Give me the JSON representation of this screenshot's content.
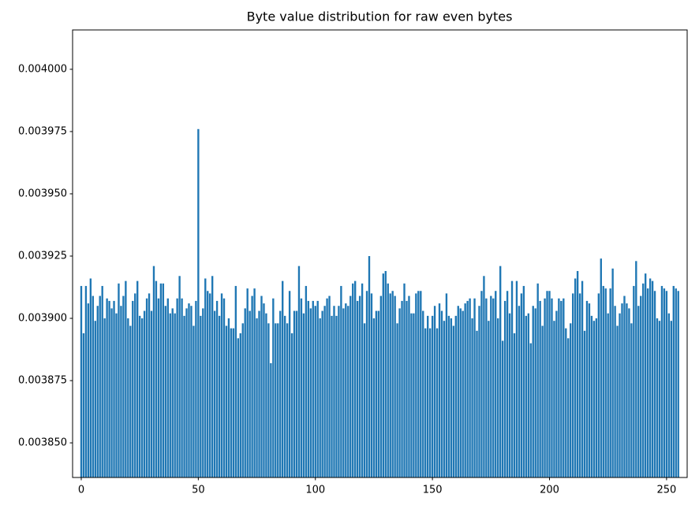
{
  "chart_data": {
    "type": "bar",
    "title": "Byte value distribution for raw even bytes",
    "x": [
      0,
      1,
      2,
      3,
      4,
      5,
      6,
      7,
      8,
      9,
      10,
      11,
      12,
      13,
      14,
      15,
      16,
      17,
      18,
      19,
      20,
      21,
      22,
      23,
      24,
      25,
      26,
      27,
      28,
      29,
      30,
      31,
      32,
      33,
      34,
      35,
      36,
      37,
      38,
      39,
      40,
      41,
      42,
      43,
      44,
      45,
      46,
      47,
      48,
      49,
      50,
      51,
      52,
      53,
      54,
      55,
      56,
      57,
      58,
      59,
      60,
      61,
      62,
      63,
      64,
      65,
      66,
      67,
      68,
      69,
      70,
      71,
      72,
      73,
      74,
      75,
      76,
      77,
      78,
      79,
      80,
      81,
      82,
      83,
      84,
      85,
      86,
      87,
      88,
      89,
      90,
      91,
      92,
      93,
      94,
      95,
      96,
      97,
      98,
      99,
      100,
      101,
      102,
      103,
      104,
      105,
      106,
      107,
      108,
      109,
      110,
      111,
      112,
      113,
      114,
      115,
      116,
      117,
      118,
      119,
      120,
      121,
      122,
      123,
      124,
      125,
      126,
      127,
      128,
      129,
      130,
      131,
      132,
      133,
      134,
      135,
      136,
      137,
      138,
      139,
      140,
      141,
      142,
      143,
      144,
      145,
      146,
      147,
      148,
      149,
      150,
      151,
      152,
      153,
      154,
      155,
      156,
      157,
      158,
      159,
      160,
      161,
      162,
      163,
      164,
      165,
      166,
      167,
      168,
      169,
      170,
      171,
      172,
      173,
      174,
      175,
      176,
      177,
      178,
      179,
      180,
      181,
      182,
      183,
      184,
      185,
      186,
      187,
      188,
      189,
      190,
      191,
      192,
      193,
      194,
      195,
      196,
      197,
      198,
      199,
      200,
      201,
      202,
      203,
      204,
      205,
      206,
      207,
      208,
      209,
      210,
      211,
      212,
      213,
      214,
      215,
      216,
      217,
      218,
      219,
      220,
      221,
      222,
      223,
      224,
      225,
      226,
      227,
      228,
      229,
      230,
      231,
      232,
      233,
      234,
      235,
      236,
      237,
      238,
      239,
      240,
      241,
      242,
      243,
      244,
      245,
      246,
      247,
      248,
      249,
      250,
      251,
      252,
      253,
      254,
      255
    ],
    "values": [
      0.003913,
      0.003894,
      0.003913,
      0.003906,
      0.003916,
      0.003909,
      0.003899,
      0.003905,
      0.003909,
      0.003913,
      0.0039,
      0.003908,
      0.003907,
      0.003904,
      0.003907,
      0.003902,
      0.003914,
      0.003905,
      0.003909,
      0.003915,
      0.0039,
      0.003897,
      0.003907,
      0.00391,
      0.003915,
      0.003901,
      0.0039,
      0.003903,
      0.003908,
      0.00391,
      0.003903,
      0.003921,
      0.003915,
      0.003908,
      0.003914,
      0.003914,
      0.003905,
      0.003908,
      0.003902,
      0.003904,
      0.003902,
      0.003908,
      0.003917,
      0.003908,
      0.003901,
      0.003904,
      0.003906,
      0.003905,
      0.003897,
      0.003907,
      0.003976,
      0.003901,
      0.003904,
      0.003916,
      0.003911,
      0.00391,
      0.003917,
      0.003903,
      0.003907,
      0.003901,
      0.00391,
      0.003908,
      0.003897,
      0.0039,
      0.003896,
      0.003896,
      0.003913,
      0.003892,
      0.003894,
      0.003898,
      0.003904,
      0.003912,
      0.003903,
      0.003909,
      0.003912,
      0.0039,
      0.003903,
      0.003909,
      0.003906,
      0.003902,
      0.003898,
      0.003882,
      0.003908,
      0.003898,
      0.003898,
      0.003903,
      0.003915,
      0.003901,
      0.003898,
      0.003911,
      0.003894,
      0.003903,
      0.003903,
      0.003921,
      0.003908,
      0.003902,
      0.003913,
      0.003907,
      0.003904,
      0.003907,
      0.003905,
      0.003907,
      0.0039,
      0.003903,
      0.003905,
      0.003908,
      0.003909,
      0.003901,
      0.003905,
      0.003901,
      0.003905,
      0.003913,
      0.003904,
      0.003906,
      0.003905,
      0.003909,
      0.003914,
      0.003915,
      0.003907,
      0.003909,
      0.003914,
      0.003898,
      0.003911,
      0.003925,
      0.00391,
      0.0039,
      0.003903,
      0.003903,
      0.003909,
      0.003918,
      0.003919,
      0.003914,
      0.00391,
      0.003911,
      0.003909,
      0.003898,
      0.003904,
      0.003907,
      0.003914,
      0.003907,
      0.003909,
      0.003902,
      0.003902,
      0.00391,
      0.003911,
      0.003911,
      0.003903,
      0.003896,
      0.003901,
      0.003896,
      0.003901,
      0.003905,
      0.003896,
      0.003906,
      0.003903,
      0.003899,
      0.00391,
      0.003901,
      0.0039,
      0.003897,
      0.003901,
      0.003905,
      0.003904,
      0.003903,
      0.003906,
      0.003907,
      0.003908,
      0.0039,
      0.003908,
      0.003895,
      0.003905,
      0.003911,
      0.003917,
      0.003908,
      0.003899,
      0.003909,
      0.003908,
      0.003911,
      0.0039,
      0.003921,
      0.003891,
      0.003907,
      0.003911,
      0.003902,
      0.003915,
      0.003894,
      0.003915,
      0.003905,
      0.00391,
      0.003913,
      0.003901,
      0.003902,
      0.00389,
      0.003905,
      0.003904,
      0.003914,
      0.003907,
      0.003897,
      0.003908,
      0.003911,
      0.003911,
      0.003908,
      0.003899,
      0.003903,
      0.003908,
      0.003907,
      0.003908,
      0.003896,
      0.003892,
      0.003898,
      0.00391,
      0.003916,
      0.003919,
      0.00391,
      0.003915,
      0.003895,
      0.003907,
      0.003906,
      0.003901,
      0.003899,
      0.0039,
      0.00391,
      0.003924,
      0.003913,
      0.003912,
      0.003902,
      0.003912,
      0.00392,
      0.003905,
      0.003897,
      0.003902,
      0.003906,
      0.003909,
      0.003906,
      0.003904,
      0.003898,
      0.003913,
      0.003923,
      0.003905,
      0.003909,
      0.003914,
      0.003918,
      0.003912,
      0.003916,
      0.003915,
      0.003911,
      0.0039,
      0.003899,
      0.003913,
      0.003912,
      0.003911,
      0.003902,
      0.003899,
      0.003913,
      0.003912,
      0.003911
    ],
    "color": "#1f77b4",
    "xlim": [
      -3.7,
      258.8
    ],
    "xticks": [
      0,
      50,
      100,
      150,
      200,
      250
    ],
    "ylim": [
      0.0038361,
      0.0040158
    ],
    "yticks": [
      {
        "value": 0.00385,
        "label": "0.003850"
      },
      0.003875,
      {
        "value": 0.0039,
        "label": "0.003900"
      },
      0.003925,
      {
        "value": 0.00395,
        "label": "0.003950"
      },
      0.003975,
      {
        "value": 0.004,
        "label": "0.004000"
      }
    ],
    "grid": false
  }
}
